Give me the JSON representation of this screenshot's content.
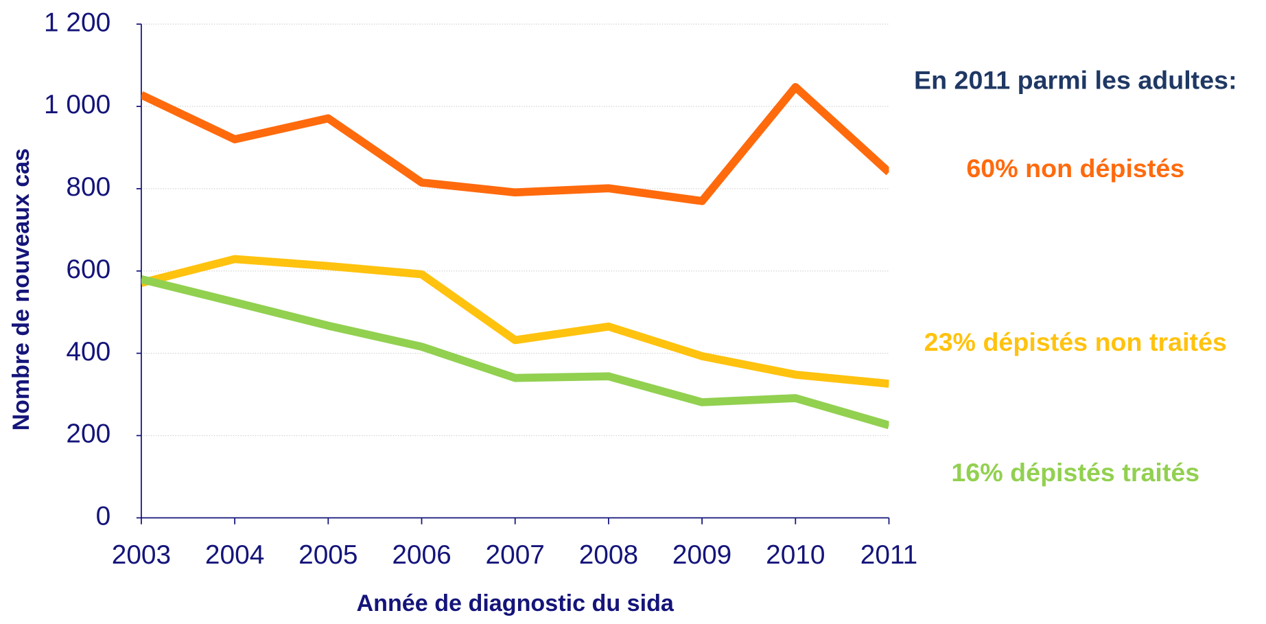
{
  "chart_data": {
    "type": "line",
    "x_label": "Année de diagnostic du sida",
    "y_label": "Nombre de nouveaux cas",
    "categories": [
      "2003",
      "2004",
      "2005",
      "2006",
      "2007",
      "2008",
      "2009",
      "2010",
      "2011"
    ],
    "annotation": "En 2011 parmi les adultes:",
    "series": [
      {
        "name": "60% non dépistés",
        "color": "#ff6a0d",
        "values": [
          1028,
          920,
          971,
          815,
          791,
          801,
          770,
          1047,
          840
        ]
      },
      {
        "name": "23% dépistés non traités",
        "color": "#ffc20e",
        "values": [
          571,
          629,
          612,
          592,
          432,
          465,
          393,
          348,
          326
        ]
      },
      {
        "name": "16% dépistés traités",
        "color": "#92d050",
        "values": [
          580,
          524,
          467,
          416,
          340,
          344,
          281,
          291,
          225
        ]
      }
    ],
    "ylim": [
      0,
      1200
    ],
    "yticks": [
      0,
      200,
      400,
      600,
      800,
      {
        "value": 1000,
        "label": "1 000"
      },
      {
        "value": 1200,
        "label": "1 200"
      }
    ],
    "grid": true,
    "header_color": "#1f3864",
    "axis_color": "#14147a"
  }
}
